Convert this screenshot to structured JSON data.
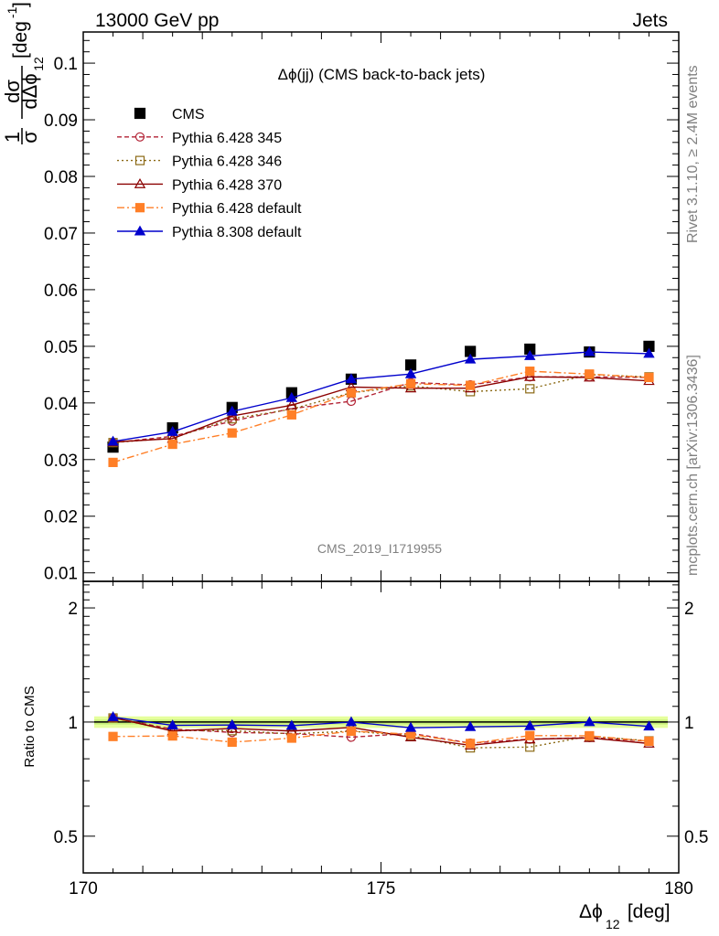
{
  "header": {
    "left": "13000 GeV pp",
    "right": "Jets"
  },
  "side_texts": {
    "rivet": "Rivet 3.1.10, ≥ 2.4M events",
    "mcplots": "mcplots.cern.ch [arXiv:1306.3436]"
  },
  "colors": {
    "CMS": "#000000",
    "p345": "#b22234",
    "p346": "#8b6914",
    "p370": "#8b0000",
    "p6def": "#ff7f27",
    "p8def": "#0000cc",
    "band_outer": "#e5ff9c",
    "band_inner": "#c8f07a"
  },
  "chart_data": [
    {
      "type": "line",
      "title": "Δϕ(jj) (CMS back-to-back jets)",
      "watermark": "CMS_2019_I1719955",
      "xlabel": "Δϕ",
      "xlabel_sub": "12",
      "xlabel_unit": " [deg]",
      "ylabel_num": "1",
      "ylabel_den": "σ",
      "ylabel_dnum": "dσ",
      "ylabel_dden": "dΔϕ",
      "ylabel_sub": "12",
      "ylabel_unit": "[deg",
      "ylabel_unit_sup": "-1",
      "ylabel_unit_close": "]",
      "xlim": [
        170,
        180
      ],
      "ylim": [
        0.0085,
        0.1055
      ],
      "x": [
        170.5,
        171.5,
        172.5,
        173.5,
        174.5,
        175.5,
        176.5,
        177.5,
        178.5,
        179.5
      ],
      "yticks": [
        0.01,
        0.02,
        0.03,
        0.04,
        0.05,
        0.06,
        0.07,
        0.08,
        0.09,
        0.1
      ],
      "ytick_labels": [
        "0.01",
        "0.02",
        "0.03",
        "0.04",
        "0.05",
        "0.06",
        "0.07",
        "0.08",
        "0.09",
        "0.1"
      ],
      "legend_position": "top-left",
      "series": [
        {
          "name": "CMS",
          "key": "CMS",
          "values": [
            0.0322,
            0.0356,
            0.0392,
            0.0418,
            0.0442,
            0.0467,
            0.0491,
            0.0495,
            0.049,
            0.05
          ]
        },
        {
          "name": "Pythia 6.428 345",
          "key": "p345",
          "values": [
            0.033,
            0.0341,
            0.0368,
            0.039,
            0.0403,
            0.0436,
            0.0432,
            0.0446,
            0.0446,
            0.0445
          ]
        },
        {
          "name": "Pythia 6.428 346",
          "key": "p346",
          "values": [
            0.033,
            0.0338,
            0.0372,
            0.0389,
            0.0418,
            0.043,
            0.042,
            0.0425,
            0.045,
            0.0446
          ]
        },
        {
          "name": "Pythia 6.428 370",
          "key": "p370",
          "values": [
            0.0331,
            0.0337,
            0.0377,
            0.0396,
            0.0428,
            0.0426,
            0.0426,
            0.0446,
            0.0445,
            0.0439
          ]
        },
        {
          "name": "Pythia 6.428 default",
          "key": "p6def",
          "values": [
            0.0295,
            0.0327,
            0.0347,
            0.0379,
            0.0418,
            0.0434,
            0.0431,
            0.0456,
            0.0451,
            0.0445
          ]
        },
        {
          "name": "Pythia 8.308 default",
          "key": "p8def",
          "values": [
            0.0332,
            0.0349,
            0.0385,
            0.0409,
            0.0442,
            0.0451,
            0.0477,
            0.0483,
            0.049,
            0.0487
          ]
        }
      ]
    },
    {
      "type": "line",
      "ylabel": "Ratio to CMS",
      "xlim": [
        170,
        180
      ],
      "ylim": [
        0.4,
        2.35
      ],
      "log_y": true,
      "x": [
        170.5,
        171.5,
        172.5,
        173.5,
        174.5,
        175.5,
        176.5,
        177.5,
        178.5,
        179.5
      ],
      "xticks": [
        170,
        175,
        180
      ],
      "xtick_labels": [
        "170",
        "175",
        "180"
      ],
      "yticks": [
        0.5,
        1,
        2
      ],
      "ytick_labels": [
        "0.5",
        "1",
        "2"
      ],
      "band": {
        "outer": [
          0.965,
          1.035
        ],
        "inner": [
          0.985,
          1.015
        ]
      },
      "series": [
        {
          "key": "p345",
          "values": [
            1.025,
            0.958,
            0.939,
            0.933,
            0.912,
            0.934,
            0.88,
            0.901,
            0.91,
            0.89
          ]
        },
        {
          "key": "p346",
          "values": [
            1.025,
            0.949,
            0.949,
            0.931,
            0.946,
            0.921,
            0.855,
            0.859,
            0.918,
            0.892
          ]
        },
        {
          "key": "p370",
          "values": [
            1.028,
            0.947,
            0.962,
            0.947,
            0.968,
            0.912,
            0.868,
            0.901,
            0.908,
            0.878
          ]
        },
        {
          "key": "p6def",
          "values": [
            0.916,
            0.919,
            0.885,
            0.907,
            0.946,
            0.929,
            0.878,
            0.921,
            0.92,
            0.89
          ]
        },
        {
          "key": "p8def",
          "values": [
            1.031,
            0.98,
            0.982,
            0.978,
            1.0,
            0.966,
            0.971,
            0.976,
            1.0,
            0.974
          ]
        }
      ]
    }
  ]
}
